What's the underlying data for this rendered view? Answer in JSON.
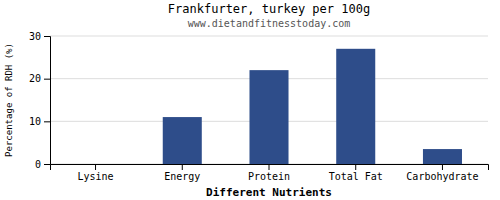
{
  "chart_data": {
    "type": "bar",
    "title": "Frankfurter, turkey per 100g",
    "subtitle": "www.dietandfitnesstoday.com",
    "x_label": "Different Nutrients",
    "y_label": "Percentage of RDH (%)",
    "categories": [
      "Lysine",
      "Energy",
      "Protein",
      "Total Fat",
      "Carbohydrate"
    ],
    "values": [
      0.0,
      11.0,
      22.0,
      27.0,
      3.5
    ],
    "color": "#2e4d8a",
    "ylim": [
      0,
      30
    ],
    "yticks": [
      0,
      10,
      20,
      30
    ],
    "grid": true
  }
}
